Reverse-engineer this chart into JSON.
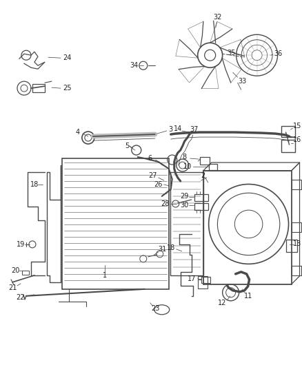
{
  "bg_color": "#ffffff",
  "line_color": "#4a4a4a",
  "text_color": "#222222",
  "figsize": [
    4.38,
    5.33
  ],
  "dpi": 100
}
